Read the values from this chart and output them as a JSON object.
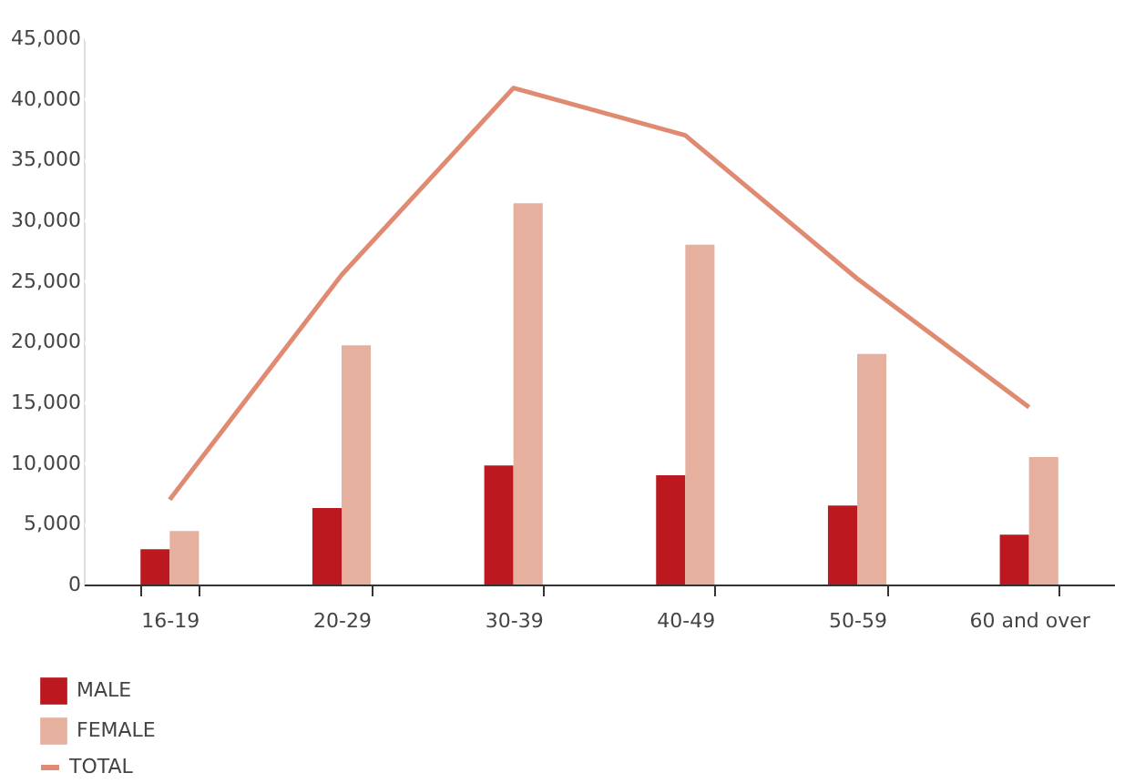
{
  "chart_data": {
    "type": "bar",
    "categories": [
      "16-19",
      "20-29",
      "30-39",
      "40-49",
      "50-59",
      "60 and over"
    ],
    "series": [
      {
        "name": "MALE",
        "color": "#bb1820",
        "values": [
          2900,
          6300,
          9800,
          9000,
          6500,
          4100
        ]
      },
      {
        "name": "FEMALE",
        "color": "#e6b09e",
        "values": [
          4400,
          19700,
          31400,
          28000,
          19000,
          10500
        ]
      },
      {
        "name": "TOTAL",
        "type": "line",
        "color": "#e08a72",
        "values": [
          7000,
          25500,
          40900,
          37000,
          25200,
          14600
        ]
      }
    ],
    "ylim": [
      0,
      45000
    ],
    "yticks": [
      0,
      {
        "value": 5000,
        "label": "5,000"
      },
      {
        "value": 10000,
        "label": "10,000"
      },
      {
        "value": 15000,
        "label": "15,000"
      },
      {
        "value": 20000,
        "label": "20,000"
      },
      {
        "value": 25000,
        "label": "25,000"
      },
      {
        "value": 30000,
        "label": "30,000"
      },
      {
        "value": 35000,
        "label": "35,000"
      },
      {
        "value": 40000,
        "label": "40,000"
      },
      {
        "value": 45000,
        "label": "45,000"
      }
    ],
    "grid": "y",
    "legend": "bottom left"
  }
}
